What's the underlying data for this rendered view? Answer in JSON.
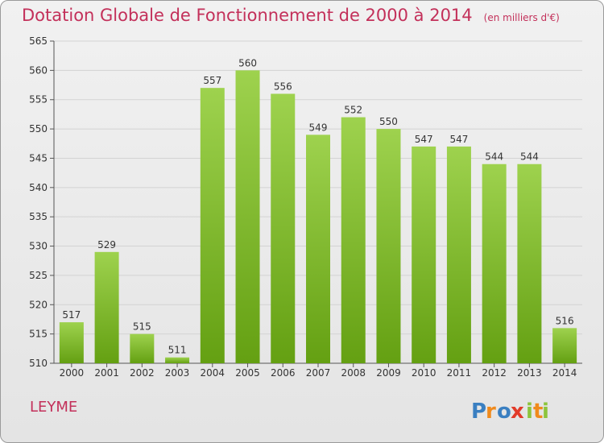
{
  "title": "Dotation Globale de Fonctionnement de 2000 à 2014",
  "unit_note": "(en milliers d'€)",
  "commune": "LEYME",
  "logo": {
    "text": "Proxiti",
    "letters": [
      "P",
      "r",
      "o",
      "x",
      "i",
      "t",
      "i"
    ]
  },
  "colors": {
    "title": "#c3305a",
    "bar_light": "#9ed24e",
    "bar_dark": "#64a012"
  },
  "chart_data": {
    "type": "bar",
    "title": "Dotation Globale de Fonctionnement de 2000 à 2014",
    "categories": [
      "2000",
      "2001",
      "2002",
      "2003",
      "2004",
      "2005",
      "2006",
      "2007",
      "2008",
      "2009",
      "2010",
      "2011",
      "2012",
      "2013",
      "2014"
    ],
    "values": [
      517,
      529,
      515,
      511,
      557,
      560,
      556,
      549,
      552,
      550,
      547,
      547,
      544,
      544,
      516
    ],
    "ylim": [
      510,
      565
    ],
    "yticks": [
      510,
      515,
      520,
      525,
      530,
      535,
      540,
      545,
      550,
      555,
      560,
      565
    ],
    "grid": true,
    "xlabel": "",
    "ylabel": ""
  }
}
